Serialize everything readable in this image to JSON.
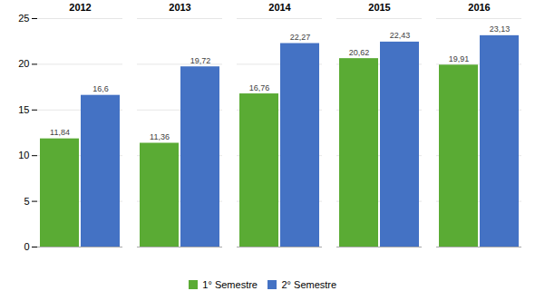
{
  "chart_data": {
    "type": "bar",
    "categories": [
      "2012",
      "2013",
      "2014",
      "2015",
      "2016"
    ],
    "series": [
      {
        "name": "1° Semestre",
        "color": "#5aab34",
        "values": [
          11.84,
          11.36,
          16.76,
          20.62,
          19.91
        ],
        "value_labels": [
          "11,84",
          "11,36",
          "16,76",
          "20,62",
          "19,91"
        ]
      },
      {
        "name": "2° Semestre",
        "color": "#4472c4",
        "values": [
          16.6,
          19.72,
          22.27,
          22.43,
          23.13
        ],
        "value_labels": [
          "16,6",
          "19,72",
          "22,27",
          "22,43",
          "23,13"
        ]
      }
    ],
    "ylim": [
      0,
      25
    ],
    "yticks": [
      0,
      5,
      10,
      15,
      20,
      25
    ],
    "grid": true,
    "data_labels": true,
    "legend": "bottom"
  }
}
